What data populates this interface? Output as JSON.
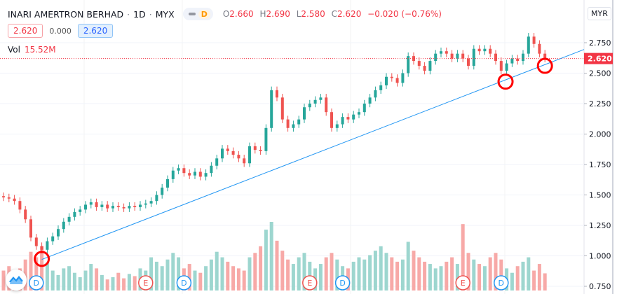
{
  "header": {
    "symbol": "INARI AMERTRON BERHAD",
    "interval": "1D",
    "exchange": "MYX",
    "badge": "D",
    "ohlc": {
      "o_label": "O",
      "o": "2.660",
      "h_label": "H",
      "h": "2.690",
      "l_label": "L",
      "l": "2.580",
      "c_label": "C",
      "c": "2.620",
      "change": "−0.020 (−0.76%)"
    },
    "bid": "2.620",
    "spread": "0.000",
    "ask": "2.620",
    "vol_label": "Vol",
    "vol_value": "15.52M",
    "currency": "MYR"
  },
  "colors": {
    "up": "#26a69a",
    "down": "#ef5350",
    "vol_up": "#9dd6cf",
    "vol_down": "#f7a9a7",
    "trendline": "#2196f3",
    "circle": "#ff0000",
    "last_price": "#f23645",
    "event_dividend": "#2196f3",
    "event_earnings": "#ef5350"
  },
  "chart_data": {
    "type": "candlestick",
    "ylim": [
      0.75,
      2.85
    ],
    "y_ticks": [
      "0.750",
      "1.000",
      "1.250",
      "1.500",
      "1.750",
      "2.000",
      "2.250",
      "2.500",
      "2.750"
    ],
    "last_price": "2.620",
    "close": [
      1.48,
      1.47,
      1.45,
      1.38,
      1.3,
      1.15,
      1.08,
      1.05,
      1.12,
      1.16,
      1.22,
      1.28,
      1.32,
      1.36,
      1.38,
      1.42,
      1.44,
      1.4,
      1.42,
      1.39,
      1.41,
      1.4,
      1.39,
      1.41,
      1.4,
      1.42,
      1.43,
      1.45,
      1.5,
      1.56,
      1.63,
      1.7,
      1.72,
      1.68,
      1.66,
      1.69,
      1.65,
      1.68,
      1.74,
      1.8,
      1.88,
      1.86,
      1.83,
      1.8,
      1.76,
      1.9,
      1.87,
      1.86,
      2.05,
      2.36,
      2.3,
      2.12,
      2.05,
      2.08,
      2.12,
      2.22,
      2.25,
      2.28,
      2.3,
      2.18,
      2.05,
      2.08,
      2.14,
      2.12,
      2.16,
      2.18,
      2.25,
      2.3,
      2.36,
      2.4,
      2.47,
      2.46,
      2.42,
      2.5,
      2.64,
      2.6,
      2.56,
      2.52,
      2.6,
      2.66,
      2.68,
      2.66,
      2.62,
      2.66,
      2.62,
      2.56,
      2.7,
      2.68,
      2.7,
      2.66,
      2.6,
      2.52,
      2.58,
      2.62,
      2.6,
      2.66,
      2.8,
      2.74,
      2.66,
      2.62
    ],
    "volume_m": [
      18,
      22,
      15,
      20,
      28,
      35,
      30,
      40,
      25,
      18,
      14,
      20,
      22,
      16,
      12,
      18,
      24,
      20,
      14,
      10,
      12,
      16,
      11,
      15,
      13,
      20,
      18,
      30,
      26,
      22,
      28,
      34,
      30,
      20,
      24,
      18,
      16,
      22,
      28,
      35,
      30,
      26,
      22,
      20,
      18,
      30,
      34,
      40,
      55,
      62,
      45,
      36,
      28,
      24,
      30,
      34,
      26,
      20,
      24,
      30,
      34,
      28,
      22,
      20,
      26,
      30,
      28,
      32,
      36,
      40,
      34,
      30,
      26,
      28,
      44,
      36,
      30,
      26,
      24,
      20,
      22,
      26,
      30,
      24,
      60,
      34,
      28,
      24,
      22,
      30,
      34,
      28,
      20,
      16,
      22,
      26,
      30,
      18,
      24,
      15.52
    ],
    "events": [
      {
        "type": "D",
        "index": 6
      },
      {
        "type": "E",
        "index": 26
      },
      {
        "type": "D",
        "index": 33
      },
      {
        "type": "E",
        "index": 56
      },
      {
        "type": "D",
        "index": 62
      },
      {
        "type": "E",
        "index": 84
      },
      {
        "type": "D",
        "index": 91
      }
    ],
    "trendline": [
      {
        "index": 7,
        "price": 0.97
      },
      {
        "index": 99,
        "price": 2.57
      }
    ],
    "highlight_circles": [
      {
        "index": 7,
        "price": 0.975
      },
      {
        "index": 91.8,
        "price": 2.43
      },
      {
        "index": 99,
        "price": 2.56
      }
    ]
  }
}
